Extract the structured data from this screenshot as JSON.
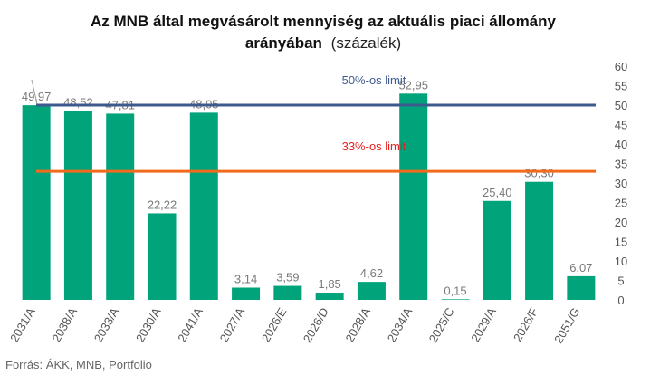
{
  "chart_data": {
    "type": "bar",
    "title_line1": "Az MNB által megvásárolt mennyiség az aktuális piaci állomány",
    "title_line2_bold": "arányában",
    "title_line2_rest": "(százalék)",
    "categories": [
      "2031/A",
      "2038/A",
      "2033/A",
      "2030/A",
      "2041/A",
      "2027/A",
      "2026/E",
      "2026/D",
      "2028/A",
      "2034/A",
      "2025/C",
      "2029/A",
      "2026/F",
      "2051/G"
    ],
    "values": [
      49.97,
      48.52,
      47.81,
      22.22,
      48.05,
      3.14,
      3.59,
      1.85,
      4.62,
      52.95,
      0.15,
      25.4,
      30.3,
      6.07
    ],
    "value_labels": [
      "49,97",
      "48,52",
      "47,81",
      "22,22",
      "48,05",
      "3,14",
      "3,59",
      "1,85",
      "4,62",
      "52,95",
      "0,15",
      "25,40",
      "30,30",
      "6,07"
    ],
    "ylim": [
      0,
      60
    ],
    "yticks": [
      0,
      5,
      10,
      15,
      20,
      25,
      30,
      35,
      40,
      45,
      50,
      55,
      60
    ],
    "y_axis_side": "right",
    "grid": false,
    "bar_color": "#00a37a",
    "reference_lines": [
      {
        "label": "50%-os limit",
        "value": 50,
        "color": "#3d5a8e",
        "label_color": "#3d5a8e"
      },
      {
        "label": "33%-os limit",
        "value": 33,
        "color": "#f26b1d",
        "label_color": "#e5201d"
      }
    ],
    "source": "Forrás: ÁKK, MNB, Portfolio"
  }
}
